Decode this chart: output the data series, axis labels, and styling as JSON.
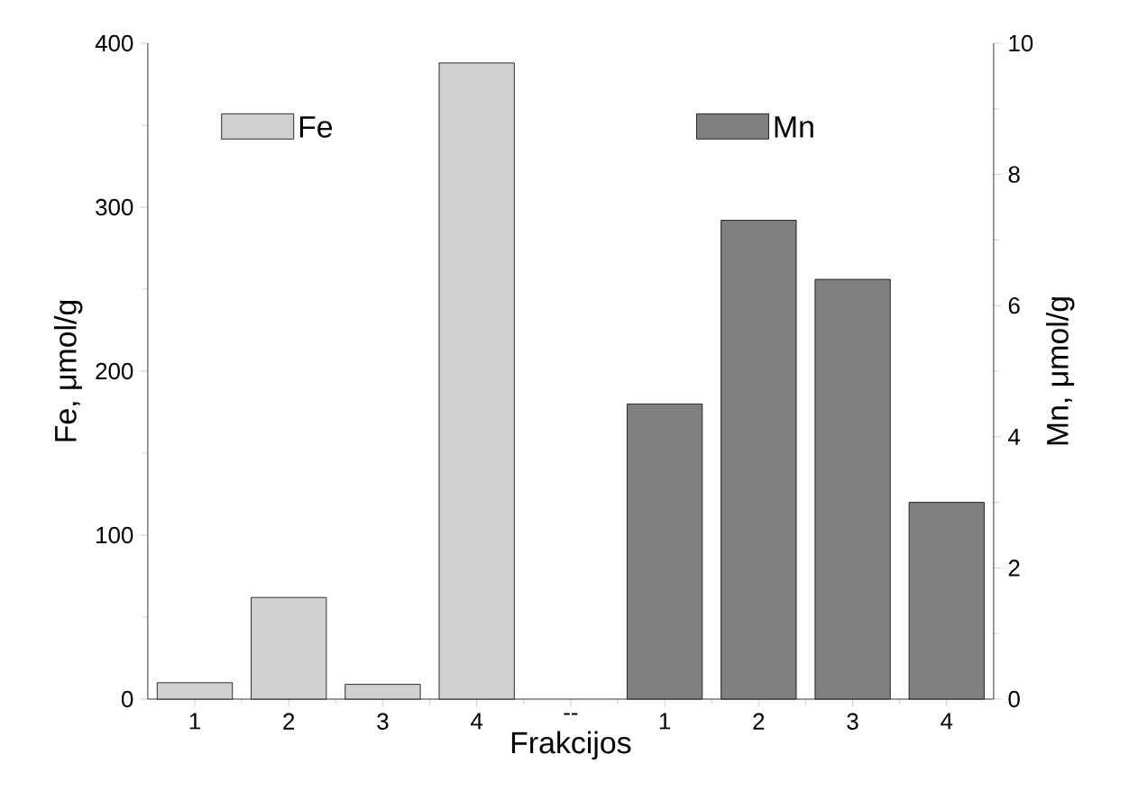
{
  "chart_data": {
    "type": "bar",
    "xlabel": "Frakcijos",
    "ylabel": "Fe, μmol/g",
    "y2label": "Mn, μmol/g",
    "categories": [
      "1",
      "2",
      "3",
      "4",
      "--",
      "1",
      "2",
      "3",
      "4"
    ],
    "series": [
      {
        "name": "Fe",
        "color": "#d0d0d0",
        "values": [
          10,
          62,
          9,
          388,
          null,
          null,
          null,
          null,
          null
        ]
      },
      {
        "name": "Mn",
        "color": "#808080",
        "axis": "y2",
        "values": [
          null,
          null,
          null,
          null,
          null,
          4.5,
          7.3,
          6.4,
          3.0
        ]
      }
    ],
    "ylim": [
      0,
      400
    ],
    "yticks": [
      0,
      100,
      200,
      300,
      400
    ],
    "y2lim": [
      0,
      10
    ],
    "y2ticks": [
      0,
      2,
      4,
      6,
      8,
      10
    ],
    "legend": "top",
    "grid": false
  }
}
